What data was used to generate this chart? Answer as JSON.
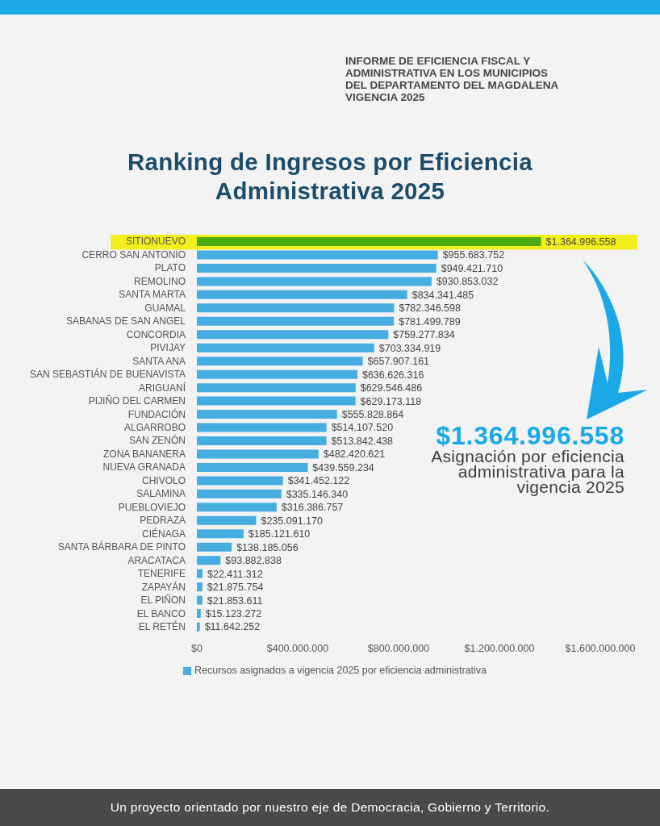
{
  "chart_data": {
    "type": "bar",
    "orientation": "horizontal",
    "title": "Ranking de Ingresos por Eficiencia Administrativa 2025",
    "categories": [
      "SITIONUEVO",
      "CERRO SAN ANTONIO",
      "PLATO",
      "REMOLINO",
      "SANTA MARTA",
      "GUAMAL",
      "SABANAS DE SAN ANGEL",
      "CONCORDIA",
      "PIVIJAY",
      "SANTA ANA",
      "SAN SEBASTIÁN DE BUENAVISTA",
      "ARIGUANÍ",
      "PIJIÑO DEL CARMEN",
      "FUNDACIÓN",
      "ALGARROBO",
      "SAN ZENÓN",
      "ZONA BANANERA",
      "NUEVA GRANADA",
      "CHIVOLO",
      "SALAMINA",
      "PUEBLOVIEJO",
      "PEDRAZA",
      "CIÉNAGA",
      "SANTA BÁRBARA DE PINTO",
      "ARACATACA",
      "TENERIFE",
      "ZAPAYÁN",
      "EL PIÑON",
      "EL BANCO",
      "EL RETÉN"
    ],
    "series": [
      {
        "name": "Recursos asignados a vigencia 2025 por eficiencia administrativa",
        "color": "#45ade0",
        "colors": [
          "#4cab10",
          "#45ade0",
          "#45ade0",
          "#45ade0",
          "#45ade0",
          "#45ade0",
          "#45ade0",
          "#45ade0",
          "#45ade0",
          "#45ade0",
          "#45ade0",
          "#45ade0",
          "#45ade0",
          "#45ade0",
          "#45ade0",
          "#45ade0",
          "#45ade0",
          "#45ade0",
          "#45ade0",
          "#45ade0",
          "#45ade0",
          "#45ade0",
          "#45ade0",
          "#45ade0",
          "#45ade0",
          "#45ade0",
          "#45ade0",
          "#45ade0",
          "#45ade0",
          "#45ade0"
        ],
        "values": [
          1364996558,
          955683752,
          949421710,
          930853032,
          834341485,
          782346598,
          781499789,
          759277834,
          703334919,
          657907161,
          636626316,
          629546486,
          629173118,
          555828864,
          514107520,
          513842438,
          482420621,
          439559234,
          341452122,
          335146340,
          316386757,
          235091170,
          185121610,
          138185056,
          93882838,
          22411312,
          21875754,
          21853611,
          15123272,
          11642252
        ],
        "value_labels": [
          "$1.364.996.558",
          "$955.683.752",
          "$949.421.710",
          "$930.853.032",
          "$834.341.485",
          "$782.346.598",
          "$781.499.789",
          "$759.277.834",
          "$703.334.919",
          "$657.907.161",
          "$636.626.316",
          "$629.546.486",
          "$629.173.118",
          "$555.828.864",
          "$514.107.520",
          "$513.842.438",
          "$482.420.621",
          "$439.559.234",
          "$341.452.122",
          "$335.146.340",
          "$316.386.757",
          "$235.091.170",
          "$185.121.610",
          "$138.185.056",
          "$93.882.838",
          "$22.411.312",
          "$21.875.754",
          "$21.853.611",
          "$15.123.272",
          "$11.642.252"
        ]
      }
    ],
    "xlim": [
      0,
      1600000000
    ],
    "xticks": [
      {
        "value": 0,
        "label": "$0"
      },
      {
        "value": 400000000,
        "label": "$400.000.000"
      },
      {
        "value": 800000000,
        "label": "$800.000.000"
      },
      {
        "value": 1200000000,
        "label": "$1.200.000.000"
      },
      {
        "value": 1600000000,
        "label": "$1.600.000.000"
      }
    ],
    "legend": "bottom",
    "bands": [
      {
        "axis": "y",
        "from": "SITIONUEVO",
        "to": "SITIONUEVO",
        "color": "#f3ef1c"
      }
    ],
    "annotations": [
      "INFORME DE EFICIENCIA FISCAL Y ADMINISTRATIVA EN LOS MUNICIPIOS DEL DEPARTAMENTO DEL MAGDALENA VIGENCIA 2025",
      "$1.364.996.558",
      "Asignación por eficiencia administrativa para la vigencia 2025",
      "Un proyecto orientado por nuestro eje de Democracia, Gobierno y Territorio."
    ]
  }
}
